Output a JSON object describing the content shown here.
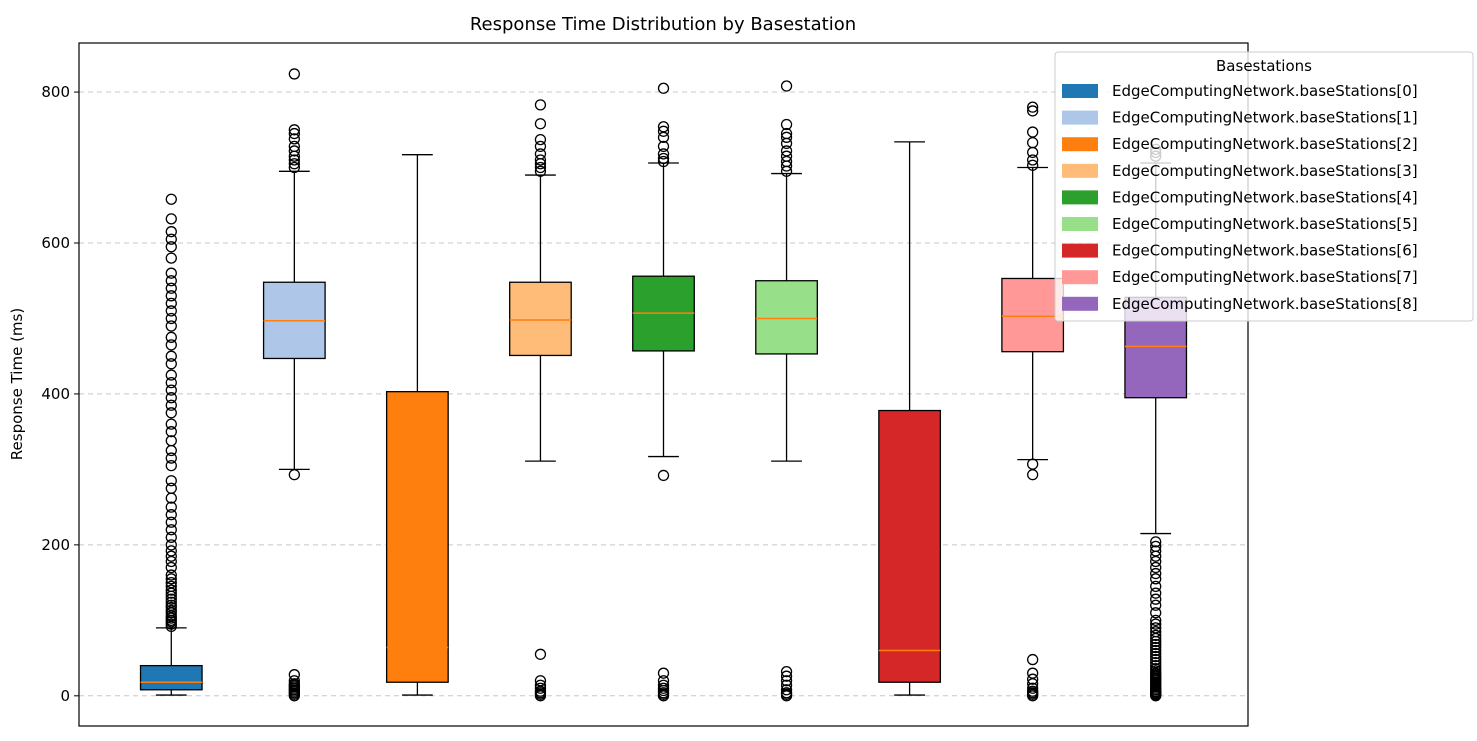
{
  "chart_data": {
    "type": "boxplot",
    "title": "Response Time Distribution by Basestation",
    "xlabel": "",
    "ylabel": "Response Time (ms)",
    "ylim": [
      -40,
      865
    ],
    "yticks": [
      0,
      200,
      400,
      600,
      800
    ],
    "grid": "y-dashed",
    "legend": {
      "title": "Basestations",
      "placement": "upper-right-outside"
    },
    "median_color": "#ff7f0e",
    "series": [
      {
        "name": "EdgeComputingNetwork.baseStations[0]",
        "color": "#1f77b4",
        "whisker_low": 1,
        "q1": 8,
        "median": 18,
        "q3": 40,
        "whisker_high": 90,
        "outliers": [
          92,
          95,
          98,
          100,
          103,
          106,
          110,
          113,
          117,
          120,
          124,
          128,
          132,
          136,
          140,
          145,
          150,
          155,
          160,
          170,
          178,
          185,
          192,
          200,
          210,
          220,
          230,
          240,
          250,
          262,
          275,
          285,
          305,
          315,
          325,
          338,
          350,
          360,
          375,
          385,
          395,
          405,
          415,
          425,
          440,
          450,
          465,
          475,
          490,
          500,
          510,
          520,
          530,
          540,
          550,
          560,
          580,
          595,
          605,
          615,
          632,
          658
        ]
      },
      {
        "name": "EdgeComputingNetwork.baseStations[1]",
        "color": "#aec7e8",
        "whisker_low": 300,
        "q1": 447,
        "median": 497,
        "q3": 548,
        "whisker_high": 695,
        "outliers": [
          0,
          2,
          4,
          6,
          8,
          10,
          12,
          14,
          16,
          20,
          28,
          293,
          700,
          705,
          710,
          715,
          722,
          728,
          738,
          745,
          750,
          824
        ]
      },
      {
        "name": "EdgeComputingNetwork.baseStations[2]",
        "color": "#ff7f0e",
        "whisker_low": 1,
        "q1": 18,
        "median": 64,
        "q3": 403,
        "whisker_high": 717,
        "outliers": []
      },
      {
        "name": "EdgeComputingNetwork.baseStations[3]",
        "color": "#ffbb78",
        "whisker_low": 311,
        "q1": 451,
        "median": 498,
        "q3": 548,
        "whisker_high": 690,
        "outliers": [
          0,
          2,
          4,
          6,
          10,
          14,
          20,
          55,
          695,
          700,
          705,
          710,
          718,
          728,
          737,
          758,
          783
        ]
      },
      {
        "name": "EdgeComputingNetwork.baseStations[4]",
        "color": "#2ca02c",
        "whisker_low": 317,
        "q1": 457,
        "median": 507,
        "q3": 556,
        "whisker_high": 706,
        "outliers": [
          0,
          2,
          4,
          7,
          10,
          14,
          20,
          30,
          292,
          708,
          712,
          718,
          728,
          740,
          748,
          754,
          805
        ]
      },
      {
        "name": "EdgeComputingNetwork.baseStations[5]",
        "color": "#98df8a",
        "whisker_low": 311,
        "q1": 453,
        "median": 500,
        "q3": 550,
        "whisker_high": 692,
        "outliers": [
          0,
          2,
          4,
          8,
          14,
          20,
          26,
          32,
          695,
          702,
          708,
          715,
          722,
          732,
          740,
          745,
          757,
          808
        ]
      },
      {
        "name": "EdgeComputingNetwork.baseStations[6]",
        "color": "#d62728",
        "whisker_low": 1,
        "q1": 18,
        "median": 60,
        "q3": 378,
        "whisker_high": 734,
        "outliers": []
      },
      {
        "name": "EdgeComputingNetwork.baseStations[7]",
        "color": "#ff9896",
        "whisker_low": 313,
        "q1": 456,
        "median": 503,
        "q3": 553,
        "whisker_high": 700,
        "outliers": [
          0,
          2,
          4,
          6,
          10,
          16,
          22,
          30,
          48,
          293,
          307,
          703,
          710,
          720,
          733,
          747,
          775,
          780
        ]
      },
      {
        "name": "EdgeComputingNetwork.baseStations[8]",
        "color": "#9467bd",
        "whisker_low": 215,
        "q1": 395,
        "median": 463,
        "q3": 528,
        "whisker_high": 706,
        "outliers": [
          0,
          1,
          2,
          3,
          4,
          5,
          6,
          8,
          10,
          12,
          14,
          16,
          18,
          20,
          22,
          24,
          26,
          28,
          30,
          33,
          36,
          40,
          44,
          48,
          52,
          56,
          60,
          64,
          68,
          72,
          76,
          80,
          85,
          90,
          95,
          100,
          110,
          120,
          128,
          136,
          145,
          155,
          162,
          170,
          178,
          185,
          192,
          198,
          204,
          715,
          720,
          724
        ]
      }
    ]
  }
}
